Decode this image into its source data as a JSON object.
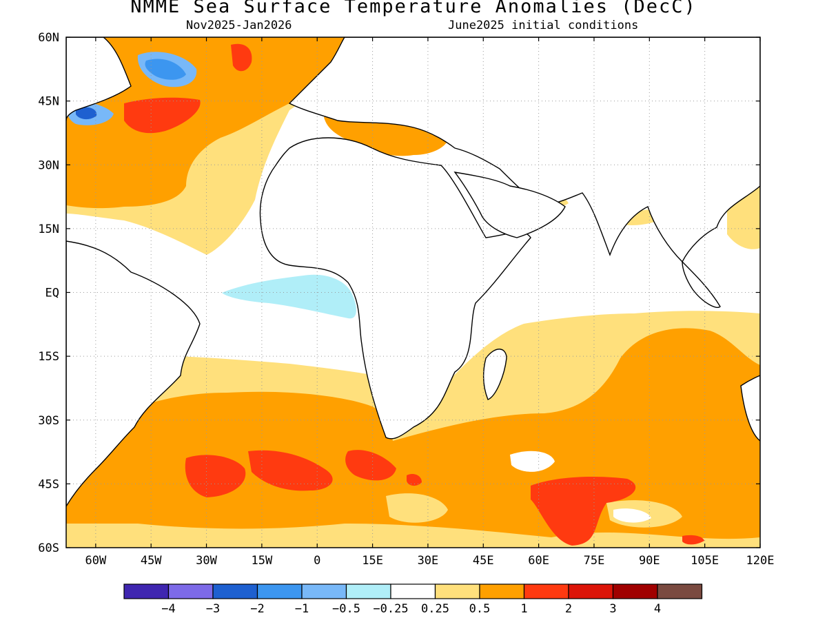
{
  "header": {
    "title": "NMME Sea Surface Temperature Anomalies (DecC)",
    "period": "Nov2025-Jan2026",
    "init": "June2025 initial conditions"
  },
  "map": {
    "lon_range": [
      -68,
      120
    ],
    "lat_range": [
      -60,
      60
    ],
    "lon_ticks": [
      "60W",
      "45W",
      "30W",
      "15W",
      "0",
      "15E",
      "30E",
      "45E",
      "60E",
      "75E",
      "90E",
      "105E",
      "120E"
    ],
    "lat_ticks": [
      "60N",
      "45N",
      "30N",
      "15N",
      "EQ",
      "15S",
      "30S",
      "45S",
      "60S"
    ],
    "grid": "dotted"
  },
  "colorbar": {
    "colors": [
      "#3f26b0",
      "#7d6ae8",
      "#1e60d0",
      "#3c96f0",
      "#78b8f8",
      "#b0eef8",
      "#ffffff",
      "#ffe07c",
      "#ffa000",
      "#ff3a10",
      "#dc1408",
      "#a00000",
      "#7a4a40"
    ],
    "labels": [
      "-4",
      "-3",
      "-2",
      "-1",
      "-0.5",
      "-0.25",
      "0.25",
      "0.5",
      "1",
      "2",
      "3",
      "4"
    ]
  }
}
